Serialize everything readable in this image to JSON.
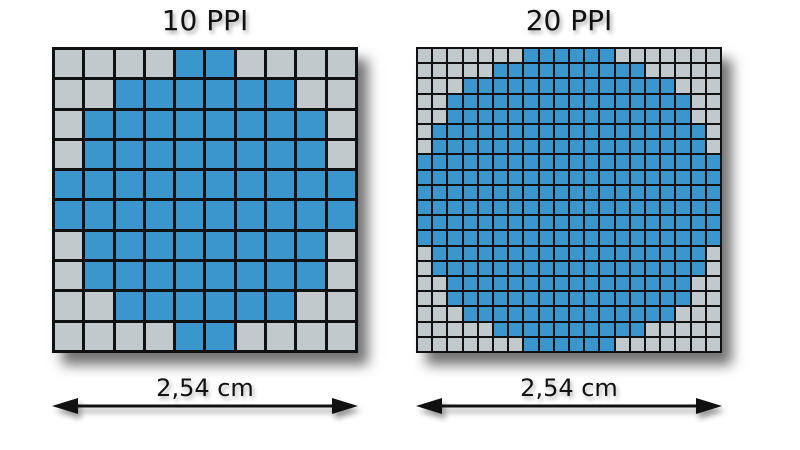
{
  "colors": {
    "on": "#3a96cc",
    "off": "#c2c9cd",
    "line": "#111111"
  },
  "panels": [
    {
      "title": "10 PPI",
      "label": "2,54 cm",
      "size": 10,
      "rows": [
        "0000110000",
        "0011111100",
        "0111111110",
        "0111111110",
        "1111111111",
        "1111111111",
        "0111111110",
        "0111111110",
        "0011111100",
        "0000110000"
      ]
    },
    {
      "title": "20 PPI",
      "label": "2,54 cm",
      "size": 20,
      "rows": [
        "00000001111110000000",
        "00000111111111100000",
        "00011111111111111000",
        "00111111111111111100",
        "00111111111111111100",
        "01111111111111111110",
        "01111111111111111110",
        "11111111111111111111",
        "11111111111111111111",
        "11111111111111111111",
        "11111111111111111111",
        "11111111111111111111",
        "11111111111111111111",
        "01111111111111111110",
        "01111111111111111110",
        "00111111111111111100",
        "00111111111111111100",
        "00011111111111111000",
        "00000111111111100000",
        "00000001111110000000"
      ]
    }
  ]
}
